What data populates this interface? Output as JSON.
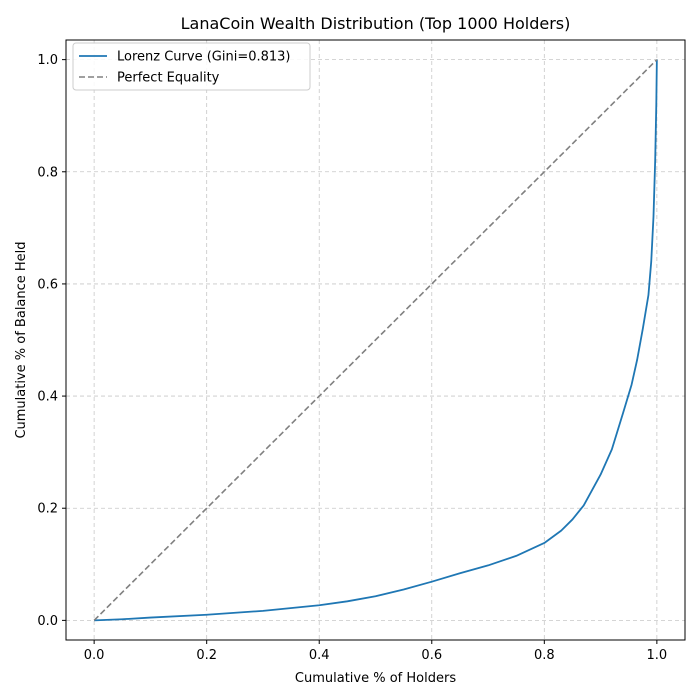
{
  "chart_data": {
    "type": "line",
    "title": "LanaCoin Wealth Distribution (Top 1000 Holders)",
    "xlabel": "Cumulative % of Holders",
    "ylabel": "Cumulative % of Balance Held",
    "xlim": [
      -0.05,
      1.05
    ],
    "ylim": [
      -0.035,
      1.035
    ],
    "xticks": [
      0.0,
      0.2,
      0.4,
      0.6,
      0.8,
      1.0
    ],
    "yticks": [
      0.0,
      0.2,
      0.4,
      0.6,
      0.8,
      1.0
    ],
    "xtick_labels": [
      "0.0",
      "0.2",
      "0.4",
      "0.6",
      "0.8",
      "1.0"
    ],
    "ytick_labels": [
      "0.0",
      "0.2",
      "0.4",
      "0.6",
      "0.8",
      "1.0"
    ],
    "grid": true,
    "legend_position": "top-left",
    "series": [
      {
        "name": "Lorenz Curve (Gini=0.813)",
        "color": "#1f77b4",
        "style": "solid",
        "x": [
          0.0,
          0.05,
          0.1,
          0.2,
          0.3,
          0.4,
          0.45,
          0.5,
          0.55,
          0.6,
          0.65,
          0.7,
          0.75,
          0.8,
          0.83,
          0.85,
          0.87,
          0.9,
          0.92,
          0.94,
          0.955,
          0.965,
          0.975,
          0.985,
          0.99,
          0.994,
          0.997,
          0.999,
          1.0
        ],
        "y": [
          0.0,
          0.002,
          0.005,
          0.01,
          0.017,
          0.027,
          0.034,
          0.043,
          0.055,
          0.069,
          0.084,
          0.098,
          0.115,
          0.138,
          0.16,
          0.18,
          0.205,
          0.26,
          0.305,
          0.37,
          0.42,
          0.465,
          0.52,
          0.58,
          0.64,
          0.72,
          0.82,
          0.92,
          1.0
        ]
      },
      {
        "name": "Perfect Equality",
        "color": "#808080",
        "style": "dashed",
        "x": [
          0.0,
          1.0
        ],
        "y": [
          0.0,
          1.0
        ]
      }
    ]
  }
}
